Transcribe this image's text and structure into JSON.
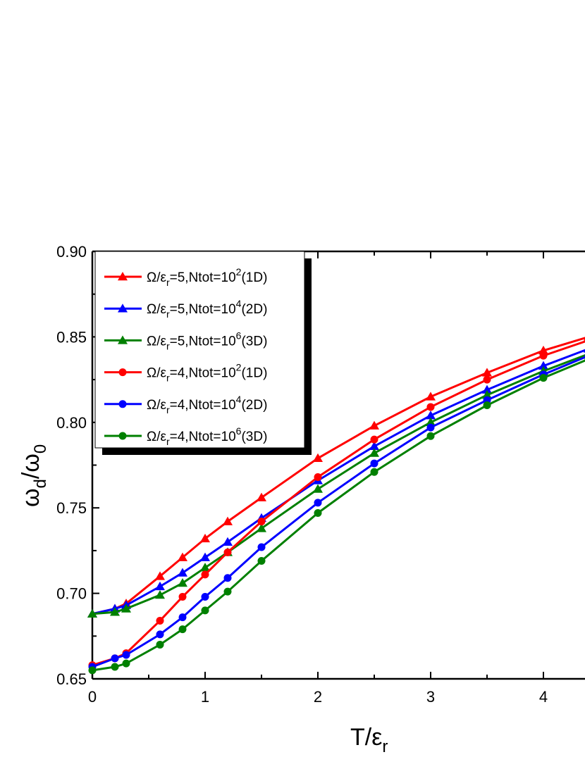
{
  "chart_data": {
    "type": "line",
    "xlabel": {
      "main": "T/ε",
      "sub": "r"
    },
    "ylabel": {
      "a": "ω",
      "a_sub": "d",
      "b": "/ω",
      "b_sub": "0"
    },
    "xlim": [
      0,
      4.4
    ],
    "ylim": [
      0.65,
      0.9
    ],
    "xticks": [
      0,
      1,
      2,
      3,
      4
    ],
    "xtick_labels": [
      "0",
      "1",
      "2",
      "3",
      "4"
    ],
    "yticks": [
      0.65,
      0.7,
      0.75,
      0.8,
      0.85,
      0.9
    ],
    "ytick_labels": [
      "0.65",
      "0.70",
      "0.75",
      "0.80",
      "0.85",
      "0.90"
    ],
    "legend_position": "top-left",
    "series": [
      {
        "name": "Ω/ε_r=5,Ntot=10^2(1D)",
        "label_parts": {
          "a": "Ω/ε",
          "sub": "r",
          "b": "=5,Ntot=10",
          "sup": "2",
          "c": "(1D)"
        },
        "color": "#ff0000",
        "marker": "triangle",
        "x": [
          0,
          0.2,
          0.3,
          0.6,
          0.8,
          1.0,
          1.2,
          1.5,
          2.0,
          2.5,
          3.0,
          3.5,
          4.0,
          4.4
        ],
        "y": [
          0.688,
          0.691,
          0.694,
          0.71,
          0.721,
          0.732,
          0.742,
          0.756,
          0.779,
          0.798,
          0.815,
          0.829,
          0.842,
          0.85
        ]
      },
      {
        "name": "Ω/ε_r=5,Ntot=10^4(2D)",
        "label_parts": {
          "a": "Ω/ε",
          "sub": "r",
          "b": "=5,Ntot=10",
          "sup": "4",
          "c": "(2D)"
        },
        "color": "#0000ff",
        "marker": "triangle",
        "x": [
          0,
          0.2,
          0.3,
          0.6,
          0.8,
          1.0,
          1.2,
          1.5,
          2.0,
          2.5,
          3.0,
          3.5,
          4.0,
          4.4
        ],
        "y": [
          0.688,
          0.691,
          0.693,
          0.704,
          0.712,
          0.721,
          0.73,
          0.744,
          0.766,
          0.786,
          0.804,
          0.819,
          0.833,
          0.843
        ]
      },
      {
        "name": "Ω/ε_r=5,Ntot=10^6(3D)",
        "label_parts": {
          "a": "Ω/ε",
          "sub": "r",
          "b": "=5,Ntot=10",
          "sup": "6",
          "c": "(3D)"
        },
        "color": "#008000",
        "marker": "triangle",
        "x": [
          0,
          0.2,
          0.3,
          0.6,
          0.8,
          1.0,
          1.2,
          1.5,
          2.0,
          2.5,
          3.0,
          3.5,
          4.0,
          4.4
        ],
        "y": [
          0.688,
          0.689,
          0.691,
          0.699,
          0.706,
          0.715,
          0.724,
          0.738,
          0.761,
          0.782,
          0.8,
          0.816,
          0.83,
          0.84
        ]
      },
      {
        "name": "Ω/ε_r=4,Ntot=10^2(1D)",
        "label_parts": {
          "a": "Ω/ε",
          "sub": "r",
          "b": "=4,Ntot=10",
          "sup": "2",
          "c": "(1D)"
        },
        "color": "#ff0000",
        "marker": "circle",
        "x": [
          0,
          0.2,
          0.3,
          0.6,
          0.8,
          1.0,
          1.2,
          1.5,
          2.0,
          2.5,
          3.0,
          3.5,
          4.0,
          4.4
        ],
        "y": [
          0.658,
          0.662,
          0.665,
          0.684,
          0.698,
          0.711,
          0.724,
          0.742,
          0.768,
          0.79,
          0.809,
          0.825,
          0.839,
          0.848
        ]
      },
      {
        "name": "Ω/ε_r=4,Ntot=10^4(2D)",
        "label_parts": {
          "a": "Ω/ε",
          "sub": "r",
          "b": "=4,Ntot=10",
          "sup": "4",
          "c": "(2D)"
        },
        "color": "#0000ff",
        "marker": "circle",
        "x": [
          0,
          0.2,
          0.3,
          0.6,
          0.8,
          1.0,
          1.2,
          1.5,
          2.0,
          2.5,
          3.0,
          3.5,
          4.0,
          4.4
        ],
        "y": [
          0.657,
          0.662,
          0.664,
          0.676,
          0.686,
          0.698,
          0.709,
          0.727,
          0.753,
          0.776,
          0.797,
          0.813,
          0.828,
          0.839
        ]
      },
      {
        "name": "Ω/ε_r=4,Ntot=10^6(3D)",
        "label_parts": {
          "a": "Ω/ε",
          "sub": "r",
          "b": "=4,Ntot=10",
          "sup": "6",
          "c": "(3D)"
        },
        "color": "#008000",
        "marker": "circle",
        "x": [
          0,
          0.2,
          0.3,
          0.6,
          0.8,
          1.0,
          1.2,
          1.5,
          2.0,
          2.5,
          3.0,
          3.5,
          4.0,
          4.4
        ],
        "y": [
          0.655,
          0.657,
          0.659,
          0.67,
          0.679,
          0.69,
          0.701,
          0.719,
          0.747,
          0.771,
          0.792,
          0.81,
          0.826,
          0.837
        ]
      }
    ]
  }
}
